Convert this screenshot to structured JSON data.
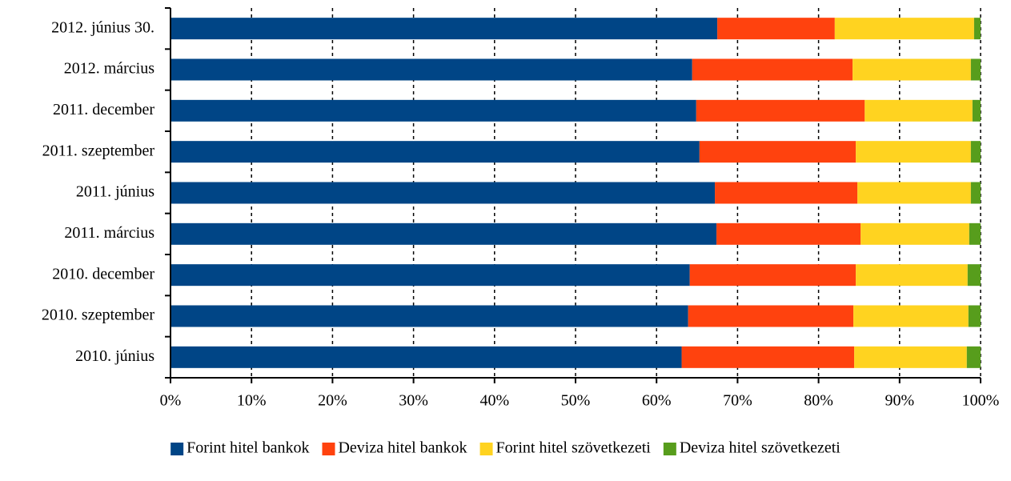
{
  "chart_data": {
    "type": "stacked-barh",
    "categories": [
      "2012. június 30.",
      "2012. március",
      "2011. december",
      "2011. szeptember",
      "2011. június",
      "2011. március",
      "2010. december",
      "2010. szeptember",
      "2010. június"
    ],
    "series": [
      {
        "name": "Forint hitel bankok",
        "color": "#004586",
        "values": [
          67.5,
          64.4,
          64.9,
          65.3,
          67.2,
          67.4,
          64.1,
          63.9,
          63.1
        ]
      },
      {
        "name": "Deviza hitel bankok",
        "color": "#ff420e",
        "values": [
          14.5,
          19.8,
          20.8,
          19.3,
          17.6,
          17.8,
          20.5,
          20.4,
          21.3
        ]
      },
      {
        "name": "Forint hitel szövetkezeti",
        "color": "#ffd320",
        "values": [
          17.2,
          14.6,
          13.3,
          14.2,
          14.0,
          13.4,
          13.8,
          14.2,
          13.9
        ]
      },
      {
        "name": "Deviza hitel szövetkezeti",
        "color": "#579d1c",
        "values": [
          0.8,
          1.2,
          1.0,
          1.2,
          1.2,
          1.4,
          1.6,
          1.5,
          1.7
        ]
      }
    ],
    "xlim": [
      0,
      100
    ],
    "xticks": [
      {
        "value": 0,
        "label": "0%"
      },
      {
        "value": 10,
        "label": "10%"
      },
      {
        "value": 20,
        "label": "20%"
      },
      {
        "value": 30,
        "label": "30%"
      },
      {
        "value": 40,
        "label": "40%"
      },
      {
        "value": 50,
        "label": "50%"
      },
      {
        "value": 60,
        "label": "60%"
      },
      {
        "value": 70,
        "label": "70%"
      },
      {
        "value": 80,
        "label": "80%"
      },
      {
        "value": 90,
        "label": "90%"
      },
      {
        "value": 100,
        "label": "100%"
      }
    ],
    "grid": true,
    "legend": "bottom"
  }
}
